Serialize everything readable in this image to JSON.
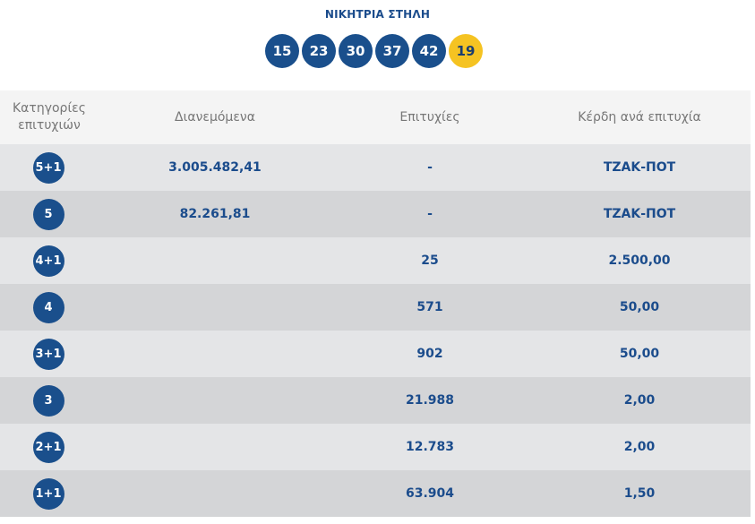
{
  "title": "ΝΙΚΗΤΡΙΑ ΣΤΗΛΗ",
  "winning_numbers": [
    "15",
    "23",
    "30",
    "37",
    "42"
  ],
  "joker_number": "19",
  "colors": {
    "ball": "#1a4f8c",
    "joker": "#f5c322",
    "text_accent": "#1b4c8c"
  },
  "table": {
    "headers": {
      "category": "Κατηγορίες επιτυχιών",
      "distributed": "Διανεμόμενα",
      "winners": "Επιτυχίες",
      "prize": "Κέρδη ανά επιτυχία"
    },
    "rows": [
      {
        "category": "5+1",
        "distributed": "3.005.482,41",
        "winners": "-",
        "prize": "ΤΖΑΚ-ΠΟΤ"
      },
      {
        "category": "5",
        "distributed": "82.261,81",
        "winners": "-",
        "prize": "ΤΖΑΚ-ΠΟΤ"
      },
      {
        "category": "4+1",
        "distributed": "",
        "winners": "25",
        "prize": "2.500,00"
      },
      {
        "category": "4",
        "distributed": "",
        "winners": "571",
        "prize": "50,00"
      },
      {
        "category": "3+1",
        "distributed": "",
        "winners": "902",
        "prize": "50,00"
      },
      {
        "category": "3",
        "distributed": "",
        "winners": "21.988",
        "prize": "2,00"
      },
      {
        "category": "2+1",
        "distributed": "",
        "winners": "12.783",
        "prize": "2,00"
      },
      {
        "category": "1+1",
        "distributed": "",
        "winners": "63.904",
        "prize": "1,50"
      }
    ]
  }
}
